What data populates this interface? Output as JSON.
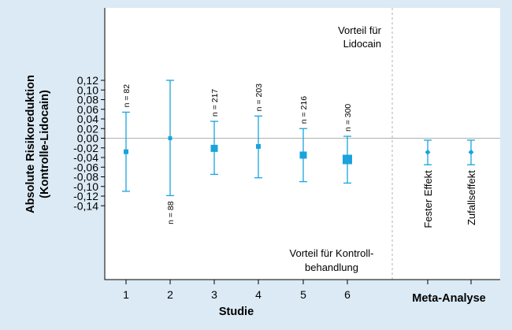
{
  "chart_data": {
    "type": "scatter",
    "title": "",
    "xlabel": "Studie",
    "ylabel": "Absolute Risikoreduktion (Kontrolle-Lidocain)",
    "ylabel_lines": [
      "Absolute Risikoreduktion",
      "(Kontrolle-Lidocain)"
    ],
    "ylim": [
      -0.15,
      0.125
    ],
    "y_ticks": [
      "0,12",
      "0,10",
      "0,08",
      "0,06",
      "0,04",
      "0,02",
      "0,00",
      "-0,02",
      "-0,04",
      "-0,06",
      "-0,08",
      "-0,10",
      "-0,12",
      "-0,14"
    ],
    "grid": false,
    "reference_line_y": 0.0,
    "studies": [
      {
        "category": "1",
        "estimate": -0.028,
        "lower": -0.11,
        "upper": 0.054,
        "n_label": "n = 82",
        "label_pos": "above",
        "marker": "small"
      },
      {
        "category": "2",
        "estimate": 0.0,
        "lower": -0.119,
        "upper": 0.12,
        "n_label": "n = 88",
        "label_pos": "below",
        "marker": "tiny"
      },
      {
        "category": "3",
        "estimate": -0.021,
        "lower": -0.075,
        "upper": 0.035,
        "n_label": "n = 217",
        "label_pos": "above",
        "marker": "medium"
      },
      {
        "category": "4",
        "estimate": -0.017,
        "lower": -0.082,
        "upper": 0.046,
        "n_label": "n = 203",
        "label_pos": "above",
        "marker": "small"
      },
      {
        "category": "5",
        "estimate": -0.035,
        "lower": -0.09,
        "upper": 0.02,
        "n_label": "n = 216",
        "label_pos": "above",
        "marker": "medium"
      },
      {
        "category": "6",
        "estimate": -0.044,
        "lower": -0.093,
        "upper": 0.004,
        "n_label": "n = 300",
        "label_pos": "above",
        "marker": "large"
      }
    ],
    "meta": [
      {
        "label": "Fester Effekt",
        "estimate": -0.029,
        "lower": -0.055,
        "upper": -0.004
      },
      {
        "label": "Zufallseffekt",
        "estimate": -0.029,
        "lower": -0.055,
        "upper": -0.004
      }
    ],
    "meta_group_label": "Meta-Analyse",
    "annotation_top": [
      "Vorteil für",
      "Lidocain"
    ],
    "annotation_bottom": [
      "Vorteil für Kontroll-",
      "behandlung"
    ],
    "colors": {
      "marker": "#1aa3dc",
      "background": "#dbeaf5",
      "plot": "#ffffff",
      "axis": "#000000",
      "refline": "#b0b0b0"
    }
  }
}
